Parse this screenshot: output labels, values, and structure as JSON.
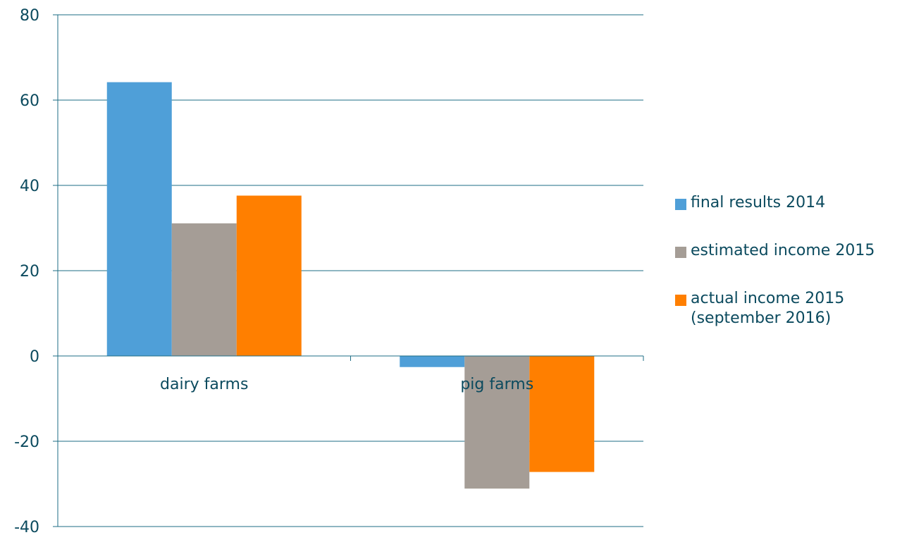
{
  "chart_data": {
    "type": "bar",
    "categories": [
      "dairy farms",
      "pig farms"
    ],
    "series": [
      {
        "name": "final results 2014",
        "values": [
          64.2,
          -2.6
        ],
        "color": "#4f9fd8"
      },
      {
        "name": "estimated income 2015",
        "values": [
          31.1,
          -31.1
        ],
        "color": "#a59d96"
      },
      {
        "name": "actual income 2015\n(september 2016)",
        "values": [
          37.6,
          -27.2
        ],
        "color": "#ff7f00"
      }
    ],
    "ylim": [
      -40,
      80
    ],
    "yticks": [
      "80",
      "60",
      "40",
      "20",
      "0",
      "-20",
      "-40"
    ],
    "grid": true,
    "legend": "right",
    "xlabel": "",
    "ylabel": "",
    "title": ""
  }
}
